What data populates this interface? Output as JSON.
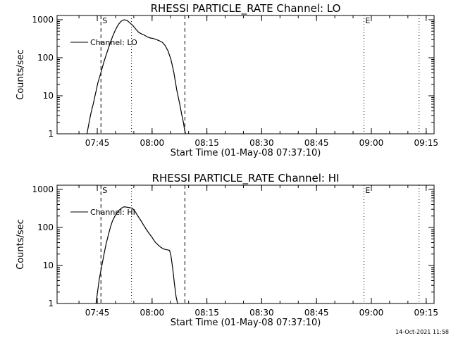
{
  "chart_data": [
    {
      "type": "line",
      "title": "RHESSI PARTICLE_RATE Channel: LO",
      "xlabel": "Start Time (01-May-08 07:37:10)",
      "ylabel": "Counts/sec",
      "yscale": "log",
      "ylim": [
        1,
        1000
      ],
      "xlim_minutes": [
        -3.17,
        100
      ],
      "x_ticks": [
        {
          "t": 7.83,
          "label": "07:45"
        },
        {
          "t": 22.83,
          "label": "08:00"
        },
        {
          "t": 37.83,
          "label": "08:15"
        },
        {
          "t": 52.83,
          "label": "08:30"
        },
        {
          "t": 67.83,
          "label": "08:45"
        },
        {
          "t": 82.83,
          "label": "09:00"
        },
        {
          "t": 97.83,
          "label": "09:15"
        }
      ],
      "y_ticks": [
        {
          "v": 1,
          "label": "1"
        },
        {
          "v": 10,
          "label": "10"
        },
        {
          "v": 100,
          "label": "100"
        },
        {
          "v": 1000,
          "label": "1000"
        }
      ],
      "legend": "Channel: LO",
      "markers": [
        {
          "t": 8.83,
          "style": "dashed",
          "label": "S"
        },
        {
          "t": 17.2,
          "style": "dotted",
          "label": ""
        },
        {
          "t": 31.8,
          "style": "dashed",
          "label": ""
        },
        {
          "t": 80.8,
          "style": "dotted",
          "label": "E"
        },
        {
          "t": 95.9,
          "style": "dotted",
          "label": ""
        }
      ],
      "series": [
        {
          "name": "Channel: LO",
          "x": [
            5.0,
            5.5,
            6.0,
            6.7,
            7.4,
            8.0,
            8.8,
            9.6,
            10.4,
            11.2,
            12.0,
            12.8,
            13.6,
            14.4,
            15.2,
            16.0,
            16.8,
            17.6,
            18.4,
            19.2,
            20.0,
            20.8,
            21.6,
            22.4,
            23.2,
            24.0,
            24.8,
            25.6,
            26.4,
            27.2,
            28.0,
            28.8,
            29.6,
            30.4,
            31.0,
            31.4,
            31.7,
            32.0
          ],
          "values": [
            1.0,
            1.8,
            3.2,
            6.0,
            12.0,
            22.0,
            40.0,
            75.0,
            130.0,
            220.0,
            360.0,
            540.0,
            750.0,
            920.0,
            1000.0,
            950.0,
            820.0,
            700.0,
            560.0,
            460.0,
            420.0,
            390.0,
            350.0,
            330.0,
            320.0,
            300.0,
            280.0,
            255.0,
            210.0,
            150.0,
            90.0,
            40.0,
            14.0,
            6.0,
            3.0,
            2.0,
            1.3,
            1.0
          ]
        }
      ]
    },
    {
      "type": "line",
      "title": "RHESSI PARTICLE_RATE Channel: HI",
      "xlabel": "Start Time (01-May-08 07:37:10)",
      "ylabel": "Counts/sec",
      "yscale": "log",
      "ylim": [
        1,
        1000
      ],
      "xlim_minutes": [
        -3.17,
        100
      ],
      "x_ticks": [
        {
          "t": 7.83,
          "label": "07:45"
        },
        {
          "t": 22.83,
          "label": "08:00"
        },
        {
          "t": 37.83,
          "label": "08:15"
        },
        {
          "t": 52.83,
          "label": "08:30"
        },
        {
          "t": 67.83,
          "label": "08:45"
        },
        {
          "t": 82.83,
          "label": "09:00"
        },
        {
          "t": 97.83,
          "label": "09:15"
        }
      ],
      "y_ticks": [
        {
          "v": 1,
          "label": "1"
        },
        {
          "v": 10,
          "label": "10"
        },
        {
          "v": 100,
          "label": "100"
        },
        {
          "v": 1000,
          "label": "1000"
        }
      ],
      "legend": "Channel: HI",
      "markers": [
        {
          "t": 8.83,
          "style": "dashed",
          "label": "S"
        },
        {
          "t": 17.2,
          "style": "dotted",
          "label": ""
        },
        {
          "t": 31.8,
          "style": "dashed",
          "label": ""
        },
        {
          "t": 80.8,
          "style": "dotted",
          "label": "E"
        },
        {
          "t": 95.9,
          "style": "dotted",
          "label": ""
        }
      ],
      "series": [
        {
          "name": "Channel: HI",
          "x": [
            7.5,
            7.9,
            8.4,
            9.0,
            9.6,
            10.2,
            10.8,
            11.4,
            12.0,
            12.8,
            13.6,
            14.4,
            15.2,
            16.0,
            16.8,
            17.4,
            18.0,
            18.8,
            19.6,
            20.4,
            21.2,
            22.0,
            22.8,
            23.6,
            24.4,
            25.2,
            26.0,
            26.8,
            27.6,
            28.0,
            28.5,
            29.0,
            29.4,
            29.8
          ],
          "values": [
            1.0,
            2.0,
            4.5,
            9.0,
            18.0,
            35.0,
            60.0,
            100.0,
            150.0,
            210.0,
            270.0,
            320.0,
            350.0,
            340.0,
            330.0,
            320.0,
            280.0,
            210.0,
            160.0,
            120.0,
            90.0,
            70.0,
            55.0,
            42.0,
            35.0,
            30.0,
            27.0,
            26.0,
            25.0,
            18.0,
            8.0,
            3.0,
            1.5,
            1.0
          ]
        }
      ]
    }
  ],
  "footer": {
    "timestamp": "14-Oct-2021 11:58"
  }
}
